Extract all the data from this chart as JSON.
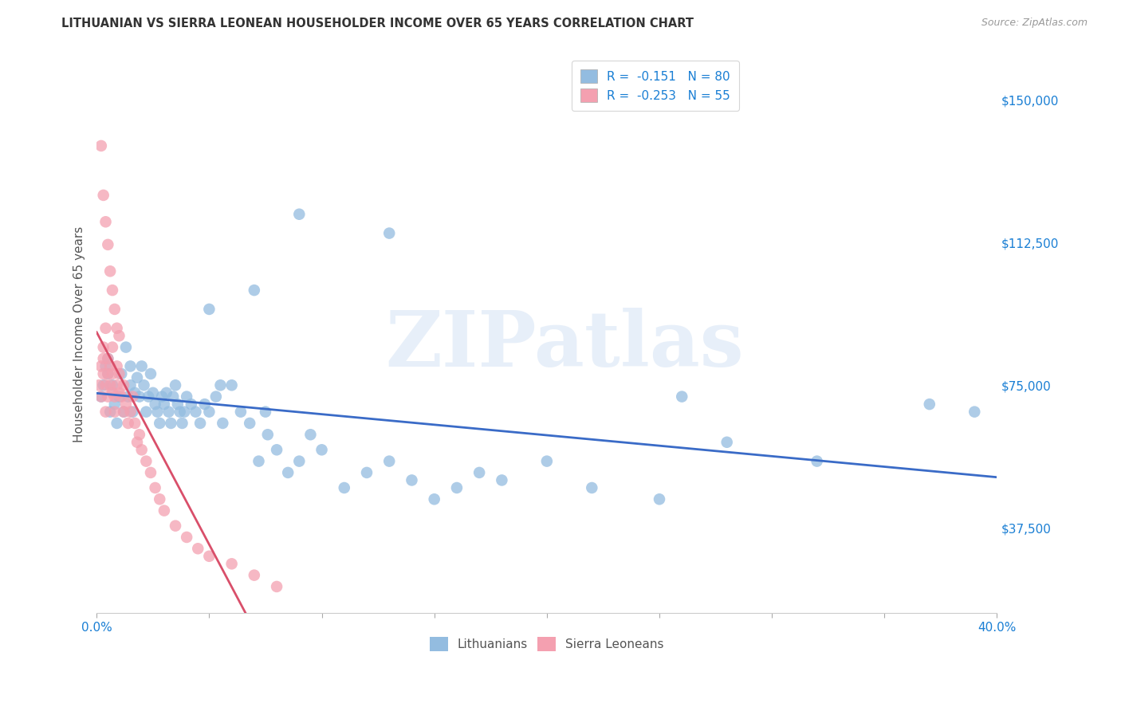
{
  "title": "LITHUANIAN VS SIERRA LEONEAN HOUSEHOLDER INCOME OVER 65 YEARS CORRELATION CHART",
  "source": "Source: ZipAtlas.com",
  "ylabel": "Householder Income Over 65 years",
  "ylabel_right_ticks": [
    "$150,000",
    "$112,500",
    "$75,000",
    "$37,500"
  ],
  "ylabel_right_values": [
    150000,
    112500,
    75000,
    37500
  ],
  "xmin": 0.0,
  "xmax": 0.4,
  "ymin": 15000,
  "ymax": 162000,
  "watermark": "ZIPatlas",
  "legend_blue_label": "R =  -0.151   N = 80",
  "legend_pink_label": "R =  -0.253   N = 55",
  "legend_label_color": "#1a7fd4",
  "trend_blue_color": "#3a6bc7",
  "trend_pink_color": "#d94f6a",
  "trend_pink_dash_color": "#dbbbbf",
  "scatter_blue_color": "#93bce0",
  "scatter_pink_color": "#f4a0b0",
  "background_color": "#ffffff",
  "grid_color": "#cccccc",
  "title_color": "#333333",
  "right_tick_color": "#1a7fd4",
  "source_color": "#999999",
  "bottom_legend_color": "#555555",
  "lithuanians_x": [
    0.002,
    0.003,
    0.004,
    0.005,
    0.005,
    0.006,
    0.007,
    0.008,
    0.009,
    0.01,
    0.011,
    0.012,
    0.013,
    0.014,
    0.015,
    0.015,
    0.016,
    0.017,
    0.018,
    0.019,
    0.02,
    0.021,
    0.022,
    0.023,
    0.024,
    0.025,
    0.026,
    0.027,
    0.028,
    0.029,
    0.03,
    0.031,
    0.032,
    0.033,
    0.034,
    0.035,
    0.036,
    0.037,
    0.038,
    0.039,
    0.04,
    0.042,
    0.044,
    0.046,
    0.048,
    0.05,
    0.053,
    0.056,
    0.06,
    0.064,
    0.068,
    0.072,
    0.076,
    0.08,
    0.085,
    0.09,
    0.095,
    0.1,
    0.11,
    0.12,
    0.13,
    0.14,
    0.15,
    0.16,
    0.17,
    0.18,
    0.2,
    0.22,
    0.25,
    0.28,
    0.32,
    0.05,
    0.07,
    0.09,
    0.13,
    0.26,
    0.37,
    0.39,
    0.055,
    0.075
  ],
  "lithuanians_y": [
    72000,
    75000,
    80000,
    78000,
    82000,
    68000,
    75000,
    70000,
    65000,
    72000,
    78000,
    68000,
    85000,
    72000,
    75000,
    80000,
    68000,
    73000,
    77000,
    72000,
    80000,
    75000,
    68000,
    72000,
    78000,
    73000,
    70000,
    68000,
    65000,
    72000,
    70000,
    73000,
    68000,
    65000,
    72000,
    75000,
    70000,
    68000,
    65000,
    68000,
    72000,
    70000,
    68000,
    65000,
    70000,
    68000,
    72000,
    65000,
    75000,
    68000,
    65000,
    55000,
    62000,
    58000,
    52000,
    55000,
    62000,
    58000,
    48000,
    52000,
    55000,
    50000,
    45000,
    48000,
    52000,
    50000,
    55000,
    48000,
    45000,
    60000,
    55000,
    95000,
    100000,
    120000,
    115000,
    72000,
    70000,
    68000,
    75000,
    68000
  ],
  "sierraleoneans_x": [
    0.001,
    0.002,
    0.002,
    0.003,
    0.003,
    0.003,
    0.004,
    0.004,
    0.004,
    0.005,
    0.005,
    0.005,
    0.006,
    0.006,
    0.007,
    0.007,
    0.007,
    0.008,
    0.008,
    0.009,
    0.009,
    0.01,
    0.01,
    0.011,
    0.012,
    0.012,
    0.013,
    0.014,
    0.015,
    0.016,
    0.017,
    0.018,
    0.019,
    0.02,
    0.022,
    0.024,
    0.026,
    0.028,
    0.03,
    0.035,
    0.04,
    0.045,
    0.05,
    0.06,
    0.07,
    0.08,
    0.002,
    0.003,
    0.004,
    0.005,
    0.006,
    0.007,
    0.008,
    0.009,
    0.01
  ],
  "sierraleoneans_y": [
    75000,
    72000,
    80000,
    82000,
    78000,
    85000,
    75000,
    68000,
    90000,
    78000,
    82000,
    72000,
    75000,
    80000,
    73000,
    85000,
    78000,
    72000,
    68000,
    75000,
    80000,
    73000,
    78000,
    72000,
    68000,
    75000,
    70000,
    65000,
    68000,
    72000,
    65000,
    60000,
    62000,
    58000,
    55000,
    52000,
    48000,
    45000,
    42000,
    38000,
    35000,
    32000,
    30000,
    28000,
    25000,
    22000,
    138000,
    125000,
    118000,
    112000,
    105000,
    100000,
    95000,
    90000,
    88000
  ]
}
